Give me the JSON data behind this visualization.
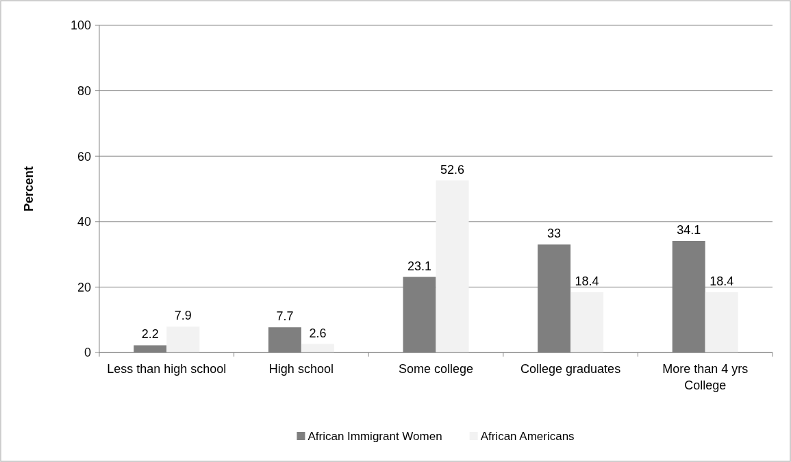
{
  "chart_data": {
    "type": "bar",
    "ylabel": "Percent",
    "categories": [
      "Less than high school",
      "High school",
      "Some college",
      "College graduates",
      "More than 4 yrs College"
    ],
    "series": [
      {
        "name": "African Immigrant Women",
        "color": "#7f7f7f",
        "values": [
          2.2,
          7.7,
          23.1,
          33,
          34.1
        ]
      },
      {
        "name": "African Americans",
        "color": "#f2f2f2",
        "values": [
          7.9,
          2.6,
          52.6,
          18.4,
          18.4
        ]
      }
    ],
    "ylim": [
      0,
      100
    ],
    "yticks": [
      0,
      20,
      40,
      60,
      80,
      100
    ],
    "grid": "y",
    "legend": "bottom",
    "data_labels": true
  }
}
